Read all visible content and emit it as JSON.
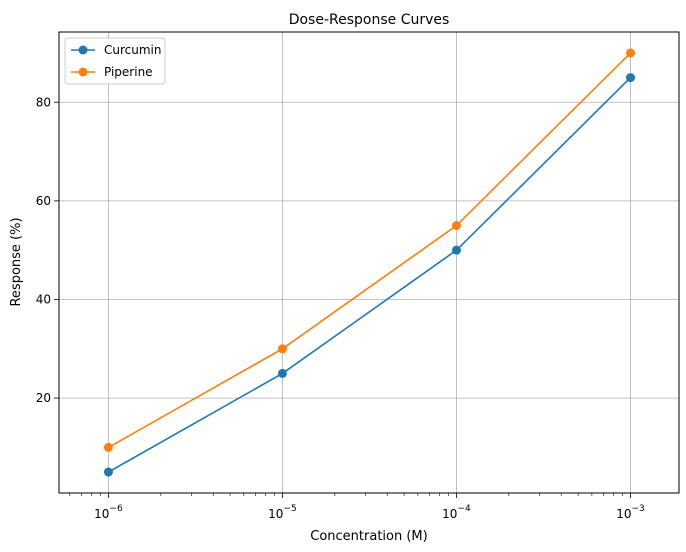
{
  "chart_data": {
    "type": "line",
    "title": "Dose-Response Curves",
    "xlabel": "Concentration (M)",
    "ylabel": "Response (%)",
    "xscale": "log",
    "x": [
      1e-06,
      1e-05,
      0.0001,
      0.001
    ],
    "x_tick_labels": [
      {
        "base": "10",
        "exp": "−6"
      },
      {
        "base": "10",
        "exp": "−5"
      },
      {
        "base": "10",
        "exp": "−4"
      },
      {
        "base": "10",
        "exp": "−3"
      }
    ],
    "xlim": [
      5.2e-07,
      0.0019
    ],
    "ylim": [
      0.75,
      94.25
    ],
    "y_ticks": [
      20,
      40,
      60,
      80
    ],
    "grid": true,
    "legend_position": "top-left",
    "series": [
      {
        "name": "Curcumin",
        "color": "#1f77b4",
        "values": [
          5,
          25,
          50,
          85
        ]
      },
      {
        "name": "Piperine",
        "color": "#ff7f0e",
        "values": [
          10,
          30,
          55,
          90
        ]
      }
    ]
  }
}
